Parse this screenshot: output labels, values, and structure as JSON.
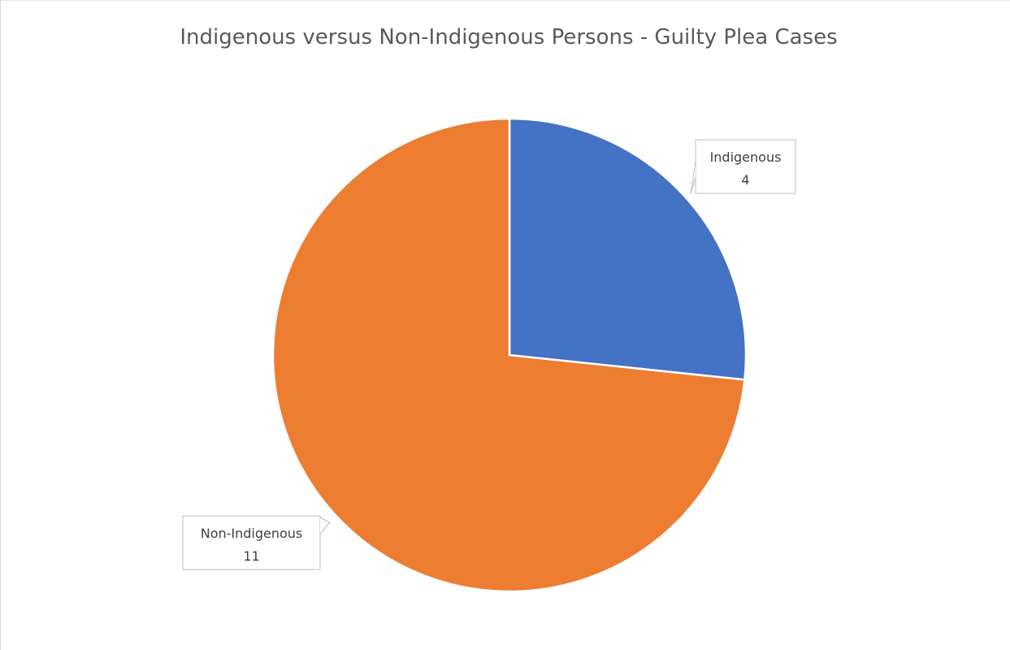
{
  "chart_data": {
    "type": "pie",
    "title": "Indigenous versus Non-Indigenous Persons - Guilty Plea Cases",
    "categories": [
      "Indigenous",
      "Non-Indigenous"
    ],
    "values": [
      4,
      11
    ],
    "colors": [
      "#4472c4",
      "#ed7d31"
    ],
    "data_labels": [
      {
        "category": "Indigenous",
        "value": "4"
      },
      {
        "category": "Non-Indigenous",
        "value": "11"
      }
    ],
    "legend": "none",
    "start_angle_deg": 0,
    "direction": "clockwise"
  }
}
